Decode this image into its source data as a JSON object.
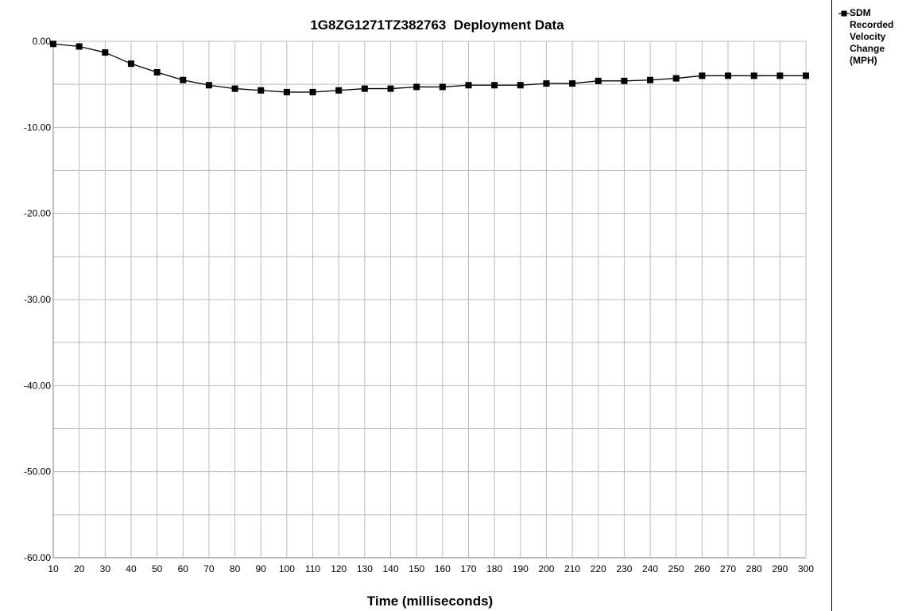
{
  "chart_data": {
    "type": "line",
    "title": "1G8ZG1271TZ382763  Deployment Data",
    "xlabel": "Time (milliseconds)",
    "ylabel": "",
    "x": [
      10,
      20,
      30,
      40,
      50,
      60,
      70,
      80,
      90,
      100,
      110,
      120,
      130,
      140,
      150,
      160,
      170,
      180,
      190,
      200,
      210,
      220,
      230,
      240,
      250,
      260,
      270,
      280,
      290,
      300
    ],
    "xlim": [
      10,
      300
    ],
    "ylim": [
      -60,
      0
    ],
    "y_ticks": [
      "0.00",
      "-10.00",
      "-20.00",
      "-30.00",
      "-40.00",
      "-50.00",
      "-60.00"
    ],
    "x_ticks": [
      "10",
      "20",
      "30",
      "40",
      "50",
      "60",
      "70",
      "80",
      "90",
      "100",
      "110",
      "120",
      "130",
      "140",
      "150",
      "160",
      "170",
      "180",
      "190",
      "200",
      "210",
      "220",
      "230",
      "240",
      "250",
      "260",
      "270",
      "280",
      "290",
      "300"
    ],
    "grid": true,
    "legend_position": "right",
    "series": [
      {
        "name": "SDM\nRecorded\nVelocity\nChange\n(MPH)",
        "color": "#000000",
        "marker": "square",
        "values": [
          -0.3,
          -0.6,
          -1.3,
          -2.6,
          -3.6,
          -4.5,
          -5.1,
          -5.5,
          -5.7,
          -5.9,
          -5.9,
          -5.7,
          -5.5,
          -5.5,
          -5.3,
          -5.3,
          -5.1,
          -5.1,
          -5.1,
          -4.9,
          -4.9,
          -4.6,
          -4.6,
          -4.5,
          -4.3,
          -4.0,
          -4.0,
          -4.0,
          -4.0,
          -4.0
        ]
      }
    ]
  }
}
